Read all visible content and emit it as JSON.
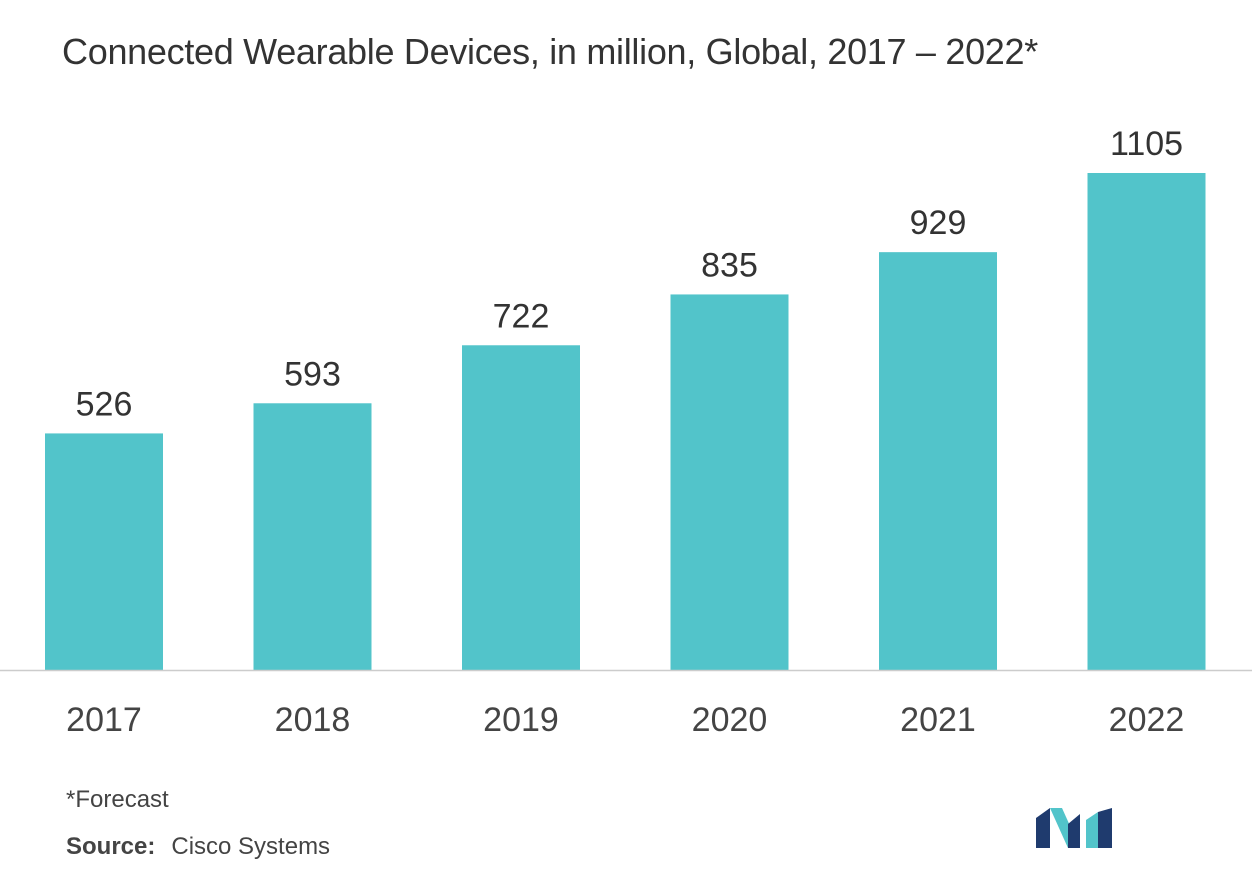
{
  "chart_data": {
    "type": "bar",
    "title": "Connected Wearable Devices, in million, Global,  2017 – 2022*",
    "categories": [
      "2017",
      "2018",
      "2019",
      "2020",
      "2021",
      "2022"
    ],
    "values": [
      526,
      593,
      722,
      835,
      929,
      1105
    ],
    "xlabel": "",
    "ylabel": "",
    "ylim": [
      0,
      1105
    ],
    "grid": false,
    "bar_color": "#52c4ca",
    "axis_color": "#cccccc"
  },
  "footnote": "*Forecast",
  "source": {
    "label": "Source:",
    "value": "Cisco Systems"
  },
  "logo": {
    "icon": "mordor-logo-icon",
    "colors": [
      "#1f3b6e",
      "#52c4ca"
    ]
  }
}
